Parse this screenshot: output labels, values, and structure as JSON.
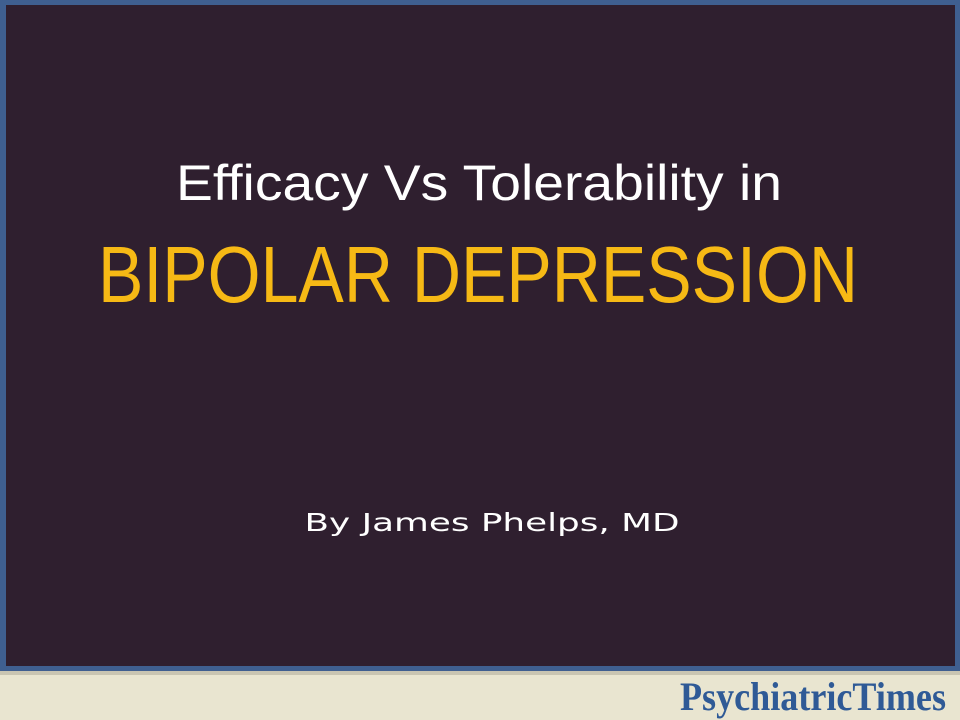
{
  "slide": {
    "title": "Efficacy Vs Tolerability in",
    "subtitle": "BIPOLAR DEPRESSION",
    "author": "By James Phelps, MD"
  },
  "footer": {
    "logo": "PsychiatricTimes"
  }
}
